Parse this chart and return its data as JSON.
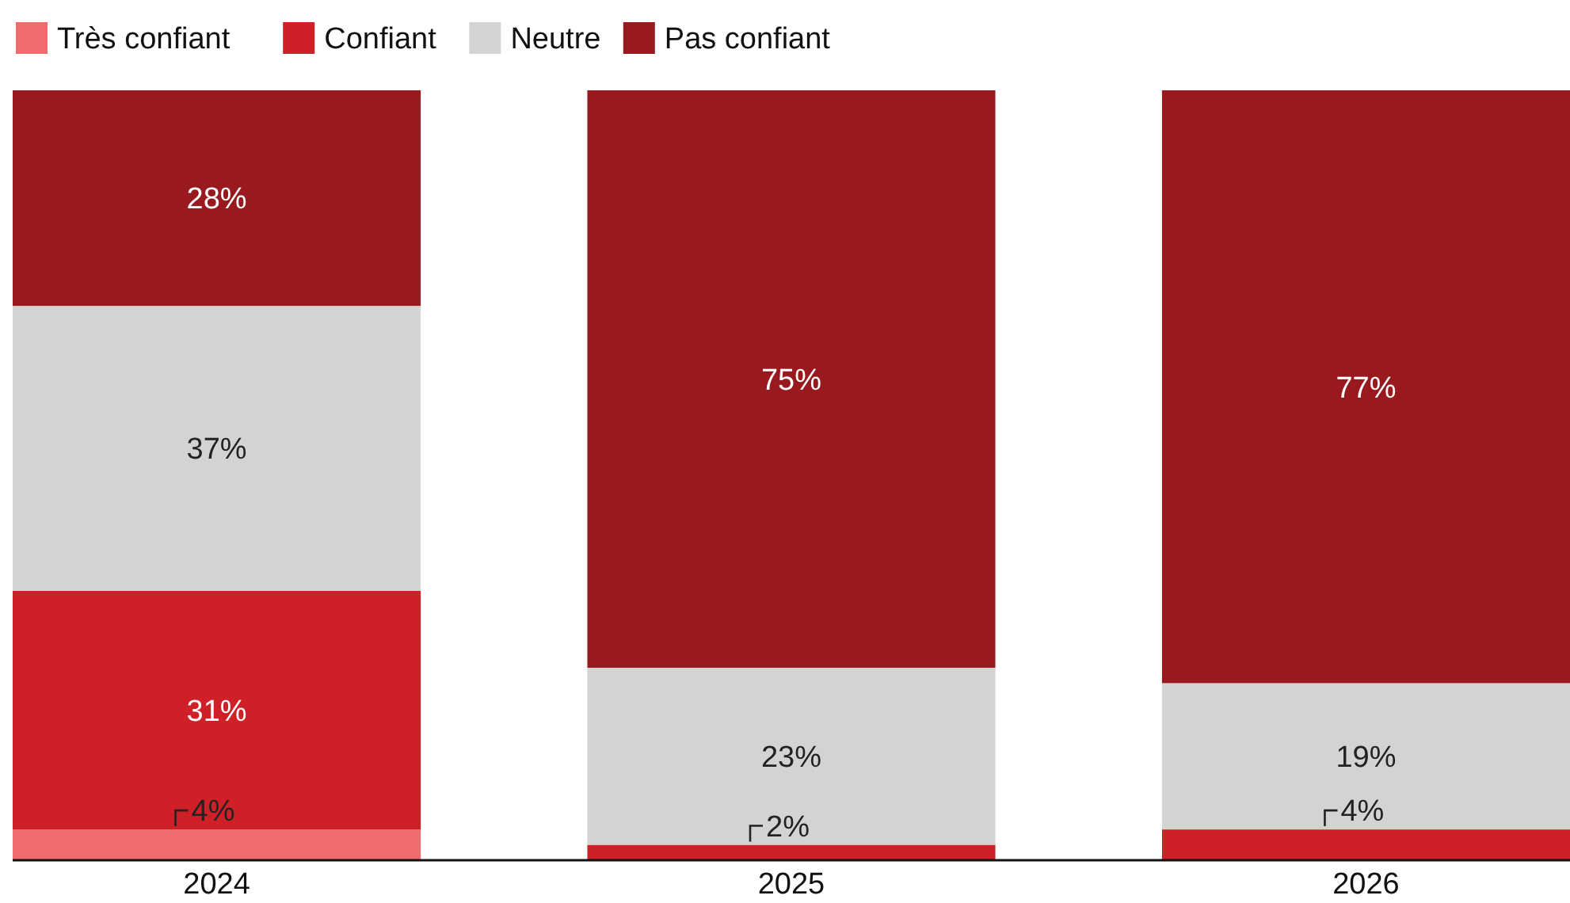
{
  "chart_data": {
    "type": "bar",
    "stacked": true,
    "categories": [
      "2024",
      "2025",
      "2026"
    ],
    "legend": "top left",
    "data_labels": true,
    "series": [
      {
        "name": "Très confiant",
        "color": "#f06b6b",
        "values": [
          4,
          0,
          0
        ],
        "value_labels": [
          "4%",
          null,
          null
        ]
      },
      {
        "name": "Confiant",
        "color": "#d02027",
        "values": [
          31,
          2,
          4
        ],
        "value_labels": [
          "31%",
          "2%",
          "4%"
        ]
      },
      {
        "name": "Neutre",
        "color": "#d3d3d1",
        "values": [
          37,
          23,
          19
        ],
        "value_labels": [
          "37%",
          "23%",
          "19%"
        ]
      },
      {
        "name": "Pas confiant",
        "color": "#981a1f",
        "values": [
          28,
          75,
          77
        ],
        "value_labels": [
          "28%",
          "75%",
          "77%"
        ]
      }
    ]
  }
}
